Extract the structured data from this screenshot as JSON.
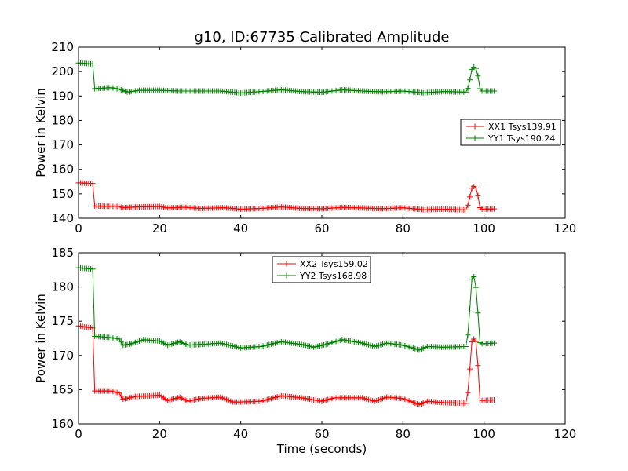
{
  "chart_data": [
    {
      "type": "line",
      "title": "g10, ID:67735 Calibrated Amplitude",
      "xlabel": "",
      "ylabel": "Power in Kelvin",
      "xlim": [
        0,
        120
      ],
      "ylim": [
        140,
        210
      ],
      "xticks": [
        0,
        20,
        40,
        60,
        80,
        100,
        120
      ],
      "yticks": [
        140,
        150,
        160,
        170,
        180,
        190,
        200,
        210
      ],
      "grid": false,
      "legend": "center-right",
      "series": [
        {
          "name": "XX1 Tsys139.91",
          "color": "#ff0000",
          "marker": "+",
          "knots": [
            [
              0,
              154.5
            ],
            [
              3.5,
              154.2
            ],
            [
              4,
              145.0
            ],
            [
              10,
              144.8
            ],
            [
              11,
              144.3
            ],
            [
              14,
              144.6
            ],
            [
              20,
              144.8
            ],
            [
              22,
              144.2
            ],
            [
              26,
              144.5
            ],
            [
              30,
              144.0
            ],
            [
              36,
              144.3
            ],
            [
              40,
              143.7
            ],
            [
              45,
              144.0
            ],
            [
              50,
              144.6
            ],
            [
              55,
              144.0
            ],
            [
              60,
              143.9
            ],
            [
              65,
              144.4
            ],
            [
              70,
              144.2
            ],
            [
              75,
              143.9
            ],
            [
              80,
              144.3
            ],
            [
              85,
              143.5
            ],
            [
              90,
              143.7
            ],
            [
              95.5,
              143.4
            ],
            [
              96.3,
              146.5
            ],
            [
              96.8,
              152.0
            ],
            [
              97.5,
              153.0
            ],
            [
              98.3,
              152.0
            ],
            [
              98.8,
              145.0
            ],
            [
              99.2,
              143.7
            ],
            [
              102.5,
              143.8
            ]
          ]
        },
        {
          "name": "YY1 Tsys190.24",
          "color": "#008000",
          "marker": "+",
          "knots": [
            [
              0,
              203.5
            ],
            [
              3.5,
              203.1
            ],
            [
              4,
              193.0
            ],
            [
              8,
              193.4
            ],
            [
              10,
              192.8
            ],
            [
              12,
              191.6
            ],
            [
              15,
              192.3
            ],
            [
              20,
              192.3
            ],
            [
              25,
              192.0
            ],
            [
              30,
              192.0
            ],
            [
              35,
              192.0
            ],
            [
              40,
              191.2
            ],
            [
              45,
              191.8
            ],
            [
              50,
              192.5
            ],
            [
              55,
              191.8
            ],
            [
              60,
              191.5
            ],
            [
              65,
              192.5
            ],
            [
              70,
              192.0
            ],
            [
              75,
              191.7
            ],
            [
              80,
              192.0
            ],
            [
              85,
              191.3
            ],
            [
              90,
              191.8
            ],
            [
              95.5,
              191.6
            ],
            [
              96.3,
              194.0
            ],
            [
              96.8,
              200.5
            ],
            [
              97.5,
              201.8
            ],
            [
              98.3,
              201.0
            ],
            [
              98.8,
              194.0
            ],
            [
              99.2,
              192.0
            ],
            [
              102.5,
              192.0
            ]
          ]
        }
      ]
    },
    {
      "type": "line",
      "title": "",
      "xlabel": "Time (seconds)",
      "ylabel": "Power in Kelvin",
      "xlim": [
        0,
        120
      ],
      "ylim": [
        160,
        185
      ],
      "xticks": [
        0,
        20,
        40,
        60,
        80,
        100,
        120
      ],
      "yticks": [
        160,
        165,
        170,
        175,
        180,
        185
      ],
      "grid": false,
      "legend": "top-center",
      "series": [
        {
          "name": "XX2 Tsys159.02",
          "color": "#ff0000",
          "marker": "+",
          "knots": [
            [
              0,
              174.3
            ],
            [
              3.5,
              174.0
            ],
            [
              4,
              164.8
            ],
            [
              8,
              164.8
            ],
            [
              10,
              164.5
            ],
            [
              11,
              163.6
            ],
            [
              14,
              164.0
            ],
            [
              18,
              164.1
            ],
            [
              20,
              164.2
            ],
            [
              22,
              163.4
            ],
            [
              25,
              163.9
            ],
            [
              27,
              163.3
            ],
            [
              30,
              163.7
            ],
            [
              35,
              163.9
            ],
            [
              38,
              163.2
            ],
            [
              40,
              163.2
            ],
            [
              45,
              163.3
            ],
            [
              50,
              164.1
            ],
            [
              55,
              163.8
            ],
            [
              60,
              163.3
            ],
            [
              63,
              163.8
            ],
            [
              70,
              163.8
            ],
            [
              73,
              163.3
            ],
            [
              76,
              163.9
            ],
            [
              80,
              163.7
            ],
            [
              84,
              162.8
            ],
            [
              86,
              163.3
            ],
            [
              90,
              163.1
            ],
            [
              95.5,
              163.0
            ],
            [
              96.3,
              165.5
            ],
            [
              96.8,
              171.8
            ],
            [
              97.5,
              172.4
            ],
            [
              98.3,
              171.8
            ],
            [
              98.8,
              163.6
            ],
            [
              99.2,
              163.4
            ],
            [
              102.5,
              163.5
            ]
          ]
        },
        {
          "name": "YY2 Tsys168.98",
          "color": "#008000",
          "marker": "+",
          "knots": [
            [
              0,
              182.8
            ],
            [
              3.5,
              182.6
            ],
            [
              4,
              172.8
            ],
            [
              8,
              172.6
            ],
            [
              10,
              172.4
            ],
            [
              11,
              171.5
            ],
            [
              13,
              171.7
            ],
            [
              16,
              172.3
            ],
            [
              20,
              172.1
            ],
            [
              22,
              171.5
            ],
            [
              25,
              172.0
            ],
            [
              27,
              171.5
            ],
            [
              30,
              171.6
            ],
            [
              35,
              171.8
            ],
            [
              40,
              171.1
            ],
            [
              45,
              171.3
            ],
            [
              50,
              172.0
            ],
            [
              55,
              171.6
            ],
            [
              58,
              171.2
            ],
            [
              61,
              171.6
            ],
            [
              65,
              172.3
            ],
            [
              70,
              171.8
            ],
            [
              73,
              171.3
            ],
            [
              76,
              171.8
            ],
            [
              80,
              171.5
            ],
            [
              84,
              170.8
            ],
            [
              86,
              171.3
            ],
            [
              90,
              171.2
            ],
            [
              95.5,
              171.3
            ],
            [
              96.3,
              174.0
            ],
            [
              96.8,
              181.0
            ],
            [
              97.5,
              181.5
            ],
            [
              98.3,
              179.0
            ],
            [
              98.8,
              172.0
            ],
            [
              99.2,
              171.7
            ],
            [
              102.5,
              171.8
            ]
          ]
        }
      ]
    }
  ]
}
